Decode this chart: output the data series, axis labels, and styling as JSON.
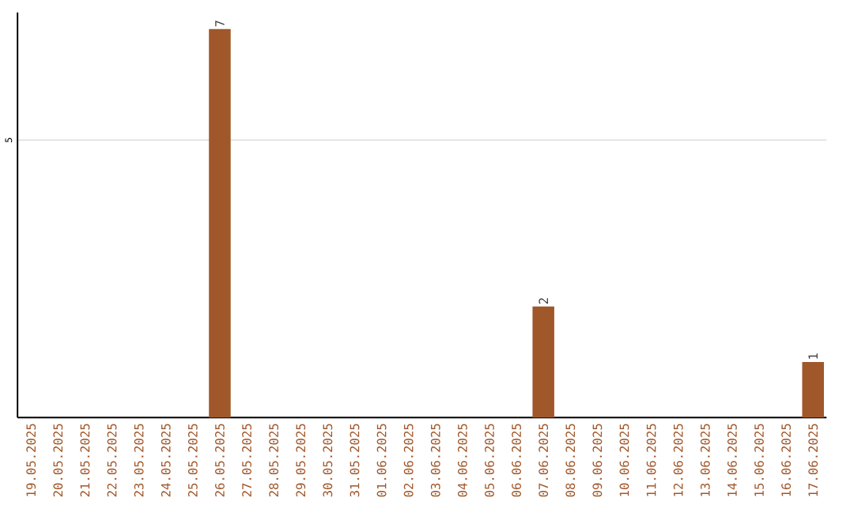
{
  "chart_data": {
    "type": "bar",
    "categories": [
      "19.05.2025",
      "20.05.2025",
      "21.05.2025",
      "22.05.2025",
      "23.05.2025",
      "24.05.2025",
      "25.05.2025",
      "26.05.2025",
      "27.05.2025",
      "28.05.2025",
      "29.05.2025",
      "30.05.2025",
      "31.05.2025",
      "01.06.2025",
      "02.06.2025",
      "03.06.2025",
      "04.06.2025",
      "05.06.2025",
      "06.06.2025",
      "07.06.2025",
      "08.06.2025",
      "09.06.2025",
      "10.06.2025",
      "11.06.2025",
      "12.06.2025",
      "13.06.2025",
      "14.06.2025",
      "15.06.2025",
      "16.06.2025",
      "17.06.2025"
    ],
    "values": [
      0,
      0,
      0,
      0,
      0,
      0,
      0,
      7,
      0,
      0,
      0,
      0,
      0,
      0,
      0,
      0,
      0,
      0,
      0,
      2,
      0,
      0,
      0,
      0,
      0,
      0,
      0,
      0,
      0,
      1
    ],
    "value_labels": [
      null,
      null,
      null,
      null,
      null,
      null,
      null,
      "7",
      null,
      null,
      null,
      null,
      null,
      null,
      null,
      null,
      null,
      null,
      null,
      "2",
      null,
      null,
      null,
      null,
      null,
      null,
      null,
      null,
      null,
      "1"
    ],
    "color": "#a0572a",
    "ylim": [
      0,
      7.3
    ],
    "yticks": [
      5
    ],
    "grid": "y"
  }
}
